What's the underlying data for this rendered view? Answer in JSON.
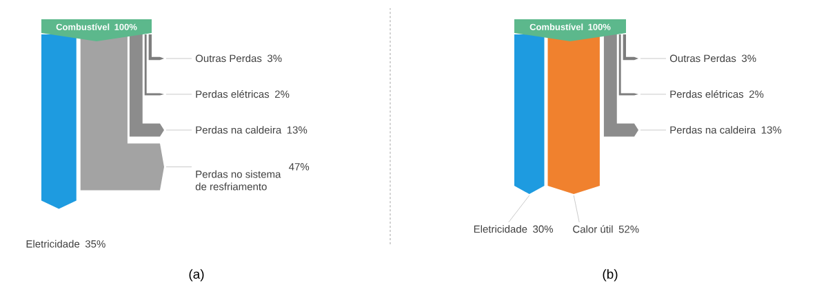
{
  "chart_data": [
    {
      "type": "other",
      "categories": [
        "Combustível",
        "Eletricidade",
        "Perdas no sistema de resfriamento",
        "Perdas na caldeira",
        "Perdas elétricas",
        "Outras Perdas"
      ],
      "values": [
        100,
        35,
        47,
        13,
        2,
        3
      ],
      "value_labels": [
        "100%",
        "35%",
        "47%",
        "13%",
        "2%",
        "3%"
      ],
      "colors": [
        "#5cb88c",
        "#1e9be0",
        "#a3a3a3",
        "#8c8c8c",
        "#7d7d7d",
        "#7d7d7d"
      ],
      "annotations": [
        "(a)"
      ]
    },
    {
      "type": "other",
      "categories": [
        "Combustível",
        "Eletricidade",
        "Calor útil",
        "Perdas na caldeira",
        "Perdas elétricas",
        "Outras Perdas"
      ],
      "values": [
        100,
        30,
        52,
        13,
        2,
        3
      ],
      "value_labels": [
        "100%",
        "30%",
        "52%",
        "13%",
        "2%",
        "3%"
      ],
      "colors": [
        "#5cb88c",
        "#1e9be0",
        "#f0812e",
        "#8c8c8c",
        "#7d7d7d",
        "#7d7d7d"
      ],
      "annotations": [
        "(b)"
      ]
    }
  ]
}
